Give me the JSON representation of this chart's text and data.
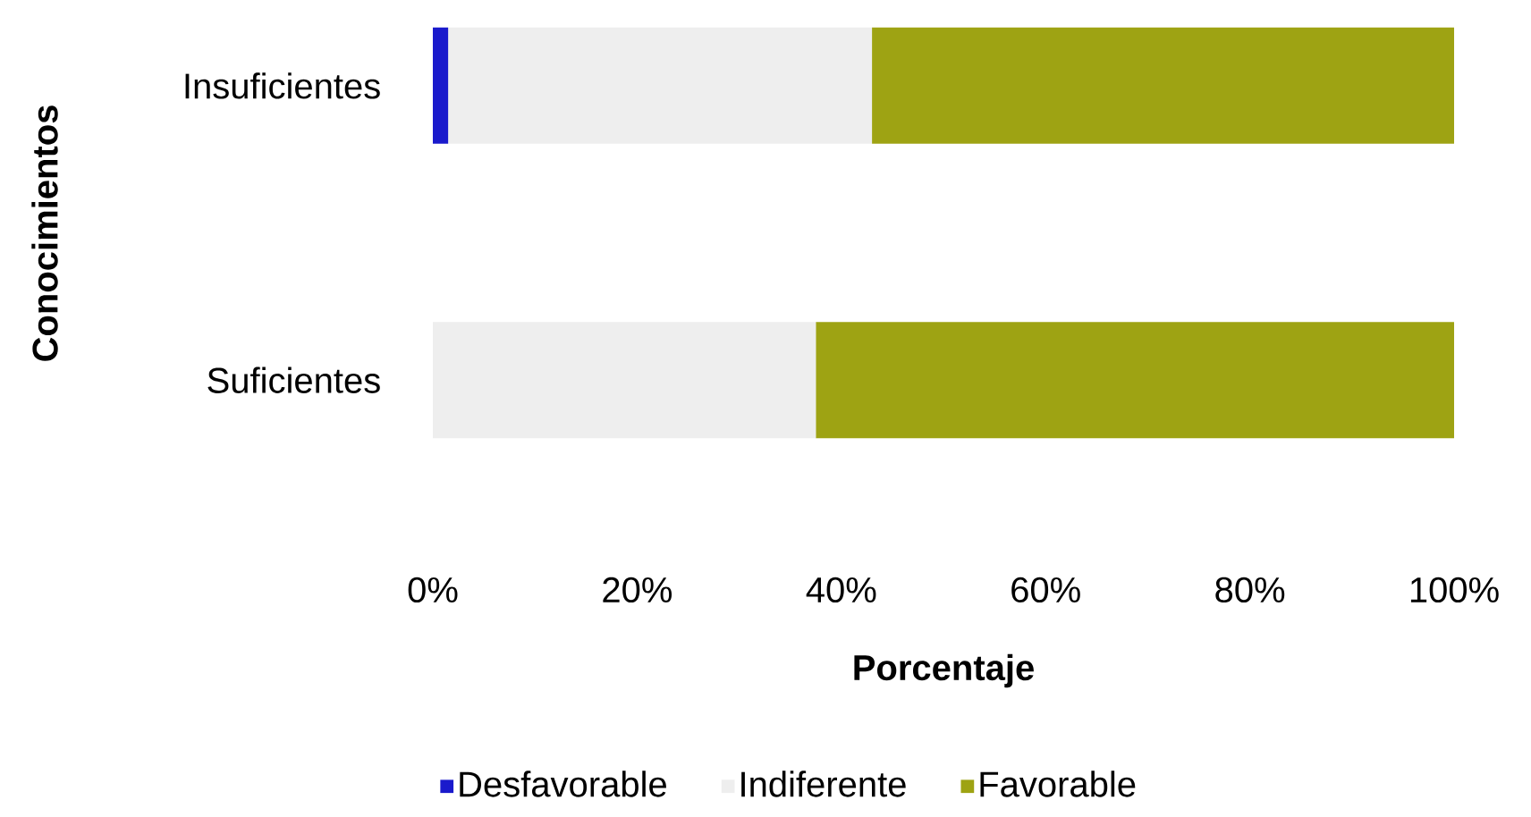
{
  "chart_data": {
    "type": "bar",
    "orientation": "horizontal",
    "stacked": true,
    "xlabel": "Porcentaje",
    "ylabel": "Conocimientos",
    "categories": [
      "Insuficientes",
      "Suficientes"
    ],
    "series": [
      {
        "name": "Desfavorable",
        "color": "#1a1acc",
        "values": [
          1.5,
          0
        ]
      },
      {
        "name": "Indiferente",
        "color": "#eeeeee",
        "values": [
          41.5,
          37.5
        ]
      },
      {
        "name": "Favorable",
        "color": "#9ea313",
        "values": [
          57,
          62.5
        ]
      }
    ],
    "xlim": [
      0,
      100
    ],
    "xticks": [
      {
        "value": 0,
        "label": "0%"
      },
      {
        "value": 20,
        "label": "20%"
      },
      {
        "value": 40,
        "label": "40%"
      },
      {
        "value": 60,
        "label": "60%"
      },
      {
        "value": 80,
        "label": "80%"
      },
      {
        "value": 100,
        "label": "100%"
      }
    ],
    "legend": "bottom"
  }
}
